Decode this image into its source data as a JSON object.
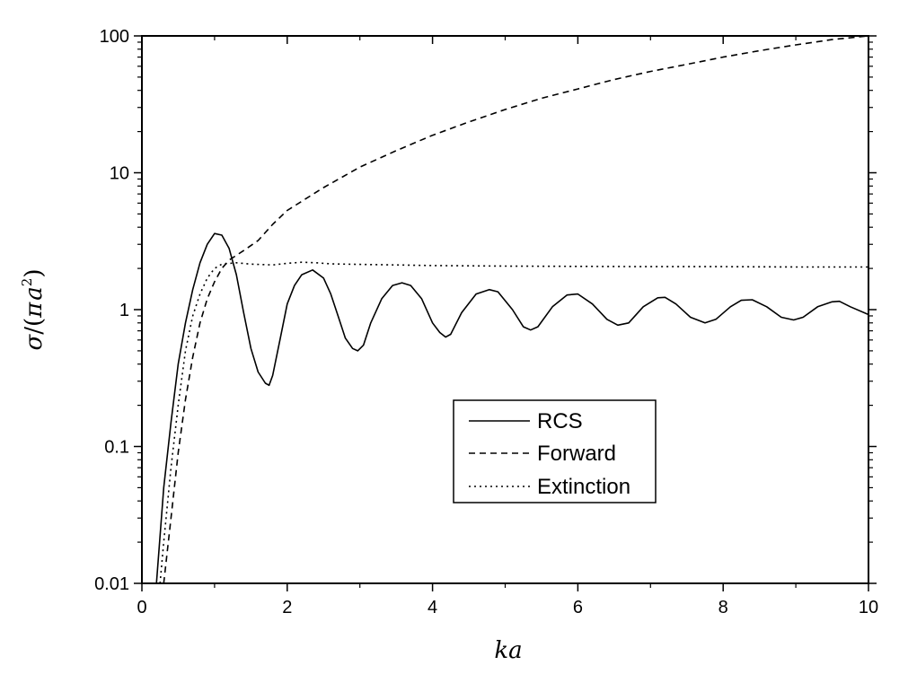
{
  "chart_data": {
    "type": "line",
    "xlabel": "ka",
    "ylabel_parts": {
      "sigma": "σ",
      "slash": "/(",
      "pi": "π",
      "a": "a",
      "exp": "2",
      "close": ")"
    },
    "xlim": [
      0,
      10
    ],
    "ylim": [
      0.01,
      100
    ],
    "yscale": "log",
    "grid": false,
    "legend_position": "center-right",
    "x_ticks": [
      {
        "value": 0,
        "label": "0"
      },
      {
        "value": 2,
        "label": "2"
      },
      {
        "value": 4,
        "label": "4"
      },
      {
        "value": 6,
        "label": "6"
      },
      {
        "value": 8,
        "label": "8"
      },
      {
        "value": 10,
        "label": "10"
      }
    ],
    "y_ticks": [
      {
        "value": 0.01,
        "label": "0.01"
      },
      {
        "value": 0.1,
        "label": "0.1"
      },
      {
        "value": 1,
        "label": "1"
      },
      {
        "value": 10,
        "label": "10"
      },
      {
        "value": 100,
        "label": "100"
      }
    ],
    "series": [
      {
        "name": "RCS",
        "style": "solid",
        "x": [
          0.2,
          0.3,
          0.4,
          0.5,
          0.6,
          0.7,
          0.8,
          0.9,
          1.0,
          1.1,
          1.2,
          1.3,
          1.4,
          1.5,
          1.6,
          1.7,
          1.75,
          1.8,
          1.9,
          2.0,
          2.1,
          2.2,
          2.35,
          2.5,
          2.6,
          2.7,
          2.8,
          2.9,
          2.97,
          3.05,
          3.15,
          3.3,
          3.45,
          3.58,
          3.7,
          3.85,
          4.0,
          4.1,
          4.18,
          4.25,
          4.4,
          4.6,
          4.78,
          4.9,
          5.1,
          5.25,
          5.35,
          5.45,
          5.65,
          5.85,
          6.0,
          6.2,
          6.4,
          6.55,
          6.7,
          6.9,
          7.1,
          7.2,
          7.35,
          7.55,
          7.75,
          7.9,
          8.1,
          8.25,
          8.4,
          8.6,
          8.8,
          8.97,
          9.1,
          9.3,
          9.5,
          9.6,
          9.75,
          10.0
        ],
        "values": [
          0.01,
          0.05,
          0.15,
          0.4,
          0.8,
          1.4,
          2.2,
          3.0,
          3.6,
          3.5,
          2.8,
          1.8,
          0.95,
          0.52,
          0.35,
          0.29,
          0.28,
          0.33,
          0.6,
          1.1,
          1.5,
          1.8,
          1.95,
          1.7,
          1.3,
          0.9,
          0.62,
          0.52,
          0.5,
          0.55,
          0.8,
          1.2,
          1.5,
          1.57,
          1.5,
          1.2,
          0.8,
          0.68,
          0.63,
          0.66,
          0.95,
          1.3,
          1.4,
          1.35,
          1.0,
          0.75,
          0.71,
          0.75,
          1.05,
          1.28,
          1.3,
          1.1,
          0.85,
          0.77,
          0.8,
          1.05,
          1.22,
          1.23,
          1.1,
          0.88,
          0.8,
          0.85,
          1.05,
          1.17,
          1.18,
          1.05,
          0.88,
          0.84,
          0.88,
          1.05,
          1.14,
          1.15,
          1.05,
          0.92
        ]
      },
      {
        "name": "Forward",
        "style": "dashed",
        "x": [
          0.3,
          0.4,
          0.5,
          0.6,
          0.7,
          0.8,
          0.9,
          1.0,
          1.1,
          1.2,
          1.4,
          1.6,
          1.8,
          2.0,
          2.5,
          3.0,
          3.5,
          4.0,
          4.5,
          5.0,
          5.5,
          6.0,
          6.5,
          7.0,
          7.5,
          8.0,
          8.5,
          9.0,
          9.5,
          10.0
        ],
        "values": [
          0.01,
          0.03,
          0.09,
          0.22,
          0.45,
          0.8,
          1.2,
          1.6,
          2.0,
          2.3,
          2.7,
          3.2,
          4.2,
          5.3,
          7.8,
          11.0,
          14.5,
          18.8,
          23.5,
          29.0,
          35.0,
          41.0,
          48.0,
          55.0,
          62.0,
          70.0,
          78.0,
          86.0,
          94.0,
          100.0
        ]
      },
      {
        "name": "Extinction",
        "style": "dotted",
        "x": [
          0.25,
          0.3,
          0.4,
          0.5,
          0.6,
          0.7,
          0.8,
          0.9,
          1.0,
          1.1,
          1.3,
          1.5,
          1.8,
          2.0,
          2.2,
          2.4,
          2.6,
          3.0,
          3.5,
          4.0,
          5.0,
          6.0,
          7.0,
          8.0,
          9.0,
          10.0
        ],
        "values": [
          0.01,
          0.02,
          0.07,
          0.2,
          0.5,
          0.9,
          1.3,
          1.7,
          2.0,
          2.15,
          2.2,
          2.15,
          2.12,
          2.18,
          2.22,
          2.2,
          2.16,
          2.14,
          2.12,
          2.1,
          2.08,
          2.07,
          2.06,
          2.06,
          2.05,
          2.05
        ]
      }
    ]
  }
}
